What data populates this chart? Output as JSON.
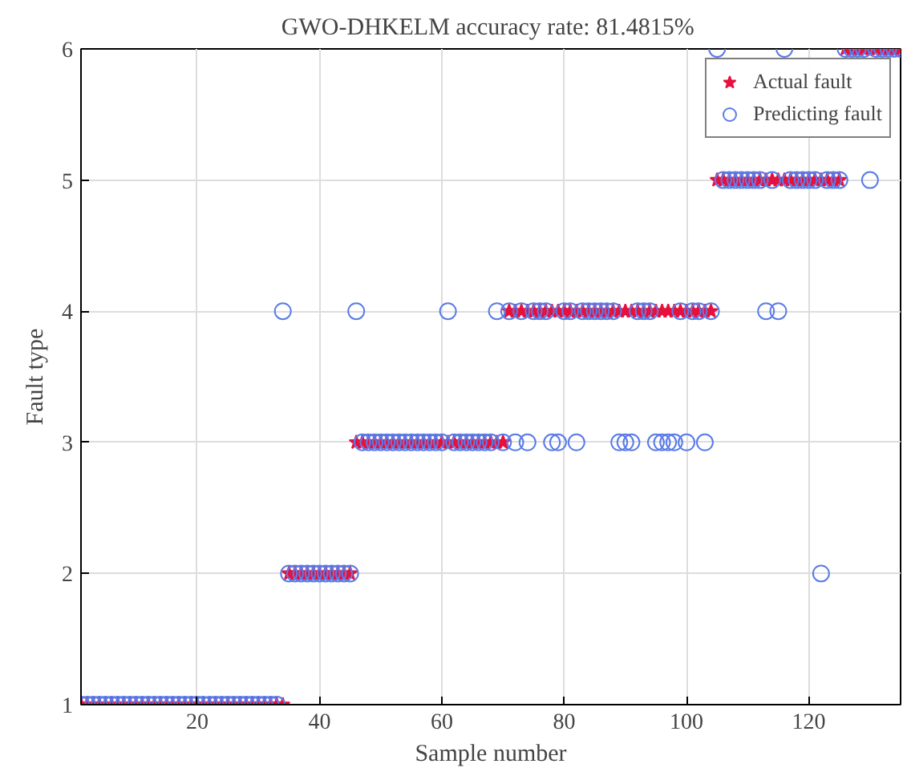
{
  "chart_data": {
    "type": "scatter",
    "title": "GWO-DHKELM  accuracy rate: 81.4815%",
    "xlabel": "Sample number",
    "ylabel": "Fault type",
    "x": [
      1,
      2,
      3,
      4,
      5,
      6,
      7,
      8,
      9,
      10,
      11,
      12,
      13,
      14,
      15,
      16,
      17,
      18,
      19,
      20,
      21,
      22,
      23,
      24,
      25,
      26,
      27,
      28,
      29,
      30,
      31,
      32,
      33,
      34,
      35,
      36,
      37,
      38,
      39,
      40,
      41,
      42,
      43,
      44,
      45,
      46,
      47,
      48,
      49,
      50,
      51,
      52,
      53,
      54,
      55,
      56,
      57,
      58,
      59,
      60,
      61,
      62,
      63,
      64,
      65,
      66,
      67,
      68,
      69,
      70,
      71,
      72,
      73,
      74,
      75,
      76,
      77,
      78,
      79,
      80,
      81,
      82,
      83,
      84,
      85,
      86,
      87,
      88,
      89,
      90,
      91,
      92,
      93,
      94,
      95,
      96,
      97,
      98,
      99,
      100,
      101,
      102,
      103,
      104,
      105,
      106,
      107,
      108,
      109,
      110,
      111,
      112,
      113,
      114,
      115,
      116,
      117,
      118,
      119,
      120,
      121,
      122,
      123,
      124,
      125,
      126,
      127,
      128,
      129,
      130,
      131,
      132,
      133,
      134,
      135
    ],
    "series": [
      {
        "name": "Actual fault",
        "color": "#e8103c",
        "marker": "star",
        "values": [
          1,
          1,
          1,
          1,
          1,
          1,
          1,
          1,
          1,
          1,
          1,
          1,
          1,
          1,
          1,
          1,
          1,
          1,
          1,
          1,
          1,
          1,
          1,
          1,
          1,
          1,
          1,
          1,
          1,
          1,
          1,
          1,
          1,
          1,
          2,
          2,
          2,
          2,
          2,
          2,
          2,
          2,
          2,
          2,
          2,
          3,
          3,
          3,
          3,
          3,
          3,
          3,
          3,
          3,
          3,
          3,
          3,
          3,
          3,
          3,
          3,
          3,
          3,
          3,
          3,
          3,
          3,
          3,
          3,
          3,
          4,
          4,
          4,
          4,
          4,
          4,
          4,
          4,
          4,
          4,
          4,
          4,
          4,
          4,
          4,
          4,
          4,
          4,
          4,
          4,
          4,
          4,
          4,
          4,
          4,
          4,
          4,
          4,
          4,
          4,
          4,
          4,
          4,
          4,
          5,
          5,
          5,
          5,
          5,
          5,
          5,
          5,
          5,
          5,
          5,
          5,
          5,
          5,
          5,
          5,
          5,
          5,
          5,
          5,
          5,
          6,
          6,
          6,
          6,
          6,
          6,
          6,
          6,
          6,
          6
        ]
      },
      {
        "name": "Predicting fault",
        "color": "#5a7be8",
        "marker": "circle",
        "values": [
          1,
          1,
          1,
          1,
          1,
          1,
          1,
          1,
          1,
          1,
          1,
          1,
          1,
          1,
          1,
          1,
          1,
          1,
          1,
          1,
          1,
          1,
          1,
          1,
          1,
          1,
          1,
          1,
          1,
          1,
          1,
          1,
          1,
          4,
          2,
          2,
          2,
          2,
          2,
          2,
          2,
          2,
          2,
          2,
          2,
          4,
          3,
          3,
          3,
          3,
          3,
          3,
          3,
          3,
          3,
          3,
          3,
          3,
          3,
          3,
          4,
          3,
          3,
          3,
          3,
          3,
          3,
          3,
          4,
          3,
          4,
          3,
          4,
          3,
          4,
          4,
          4,
          3,
          3,
          4,
          4,
          3,
          4,
          4,
          4,
          4,
          4,
          4,
          3,
          3,
          3,
          4,
          4,
          4,
          3,
          3,
          3,
          3,
          4,
          3,
          4,
          4,
          3,
          4,
          6,
          5,
          5,
          5,
          5,
          5,
          5,
          5,
          4,
          5,
          4,
          6,
          5,
          5,
          5,
          5,
          5,
          2,
          5,
          5,
          5,
          6,
          6,
          6,
          6,
          5,
          6,
          6,
          6,
          6,
          6
        ]
      }
    ],
    "xlim": [
      1,
      135
    ],
    "ylim": [
      1,
      6
    ],
    "xticks": [
      20,
      40,
      60,
      80,
      100,
      120
    ],
    "yticks": [
      1,
      2,
      3,
      4,
      5,
      6
    ],
    "grid": true,
    "legend": "top right"
  }
}
